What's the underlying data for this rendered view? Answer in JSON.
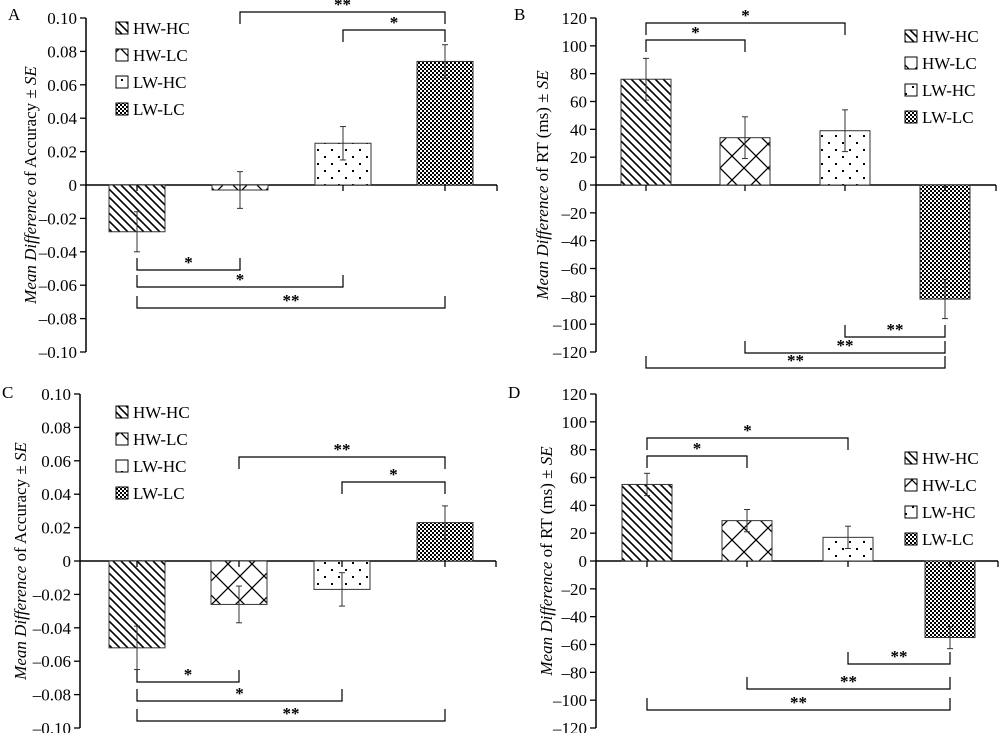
{
  "chart_data": [
    {
      "type": "bar",
      "panel_label": "A",
      "ylabel_italic": "Mean Difference",
      "ylabel_rest": " of Accuracy ± ",
      "ylabel_se": "SE",
      "ylim": [
        -0.1,
        0.1
      ],
      "yticks": [
        0.1,
        0.08,
        0.06,
        0.04,
        0.02,
        0,
        -0.02,
        -0.04,
        -0.06,
        -0.08,
        -0.1
      ],
      "ytick_labels": [
        "0.10",
        "0.08",
        "0.06",
        "0.04",
        "0.02",
        "0",
        "–0.02",
        "–0.04",
        "–0.06",
        "–0.08",
        "–0.10"
      ],
      "legend_position": "top-left",
      "categories": [
        "HW-HC",
        "HW-LC",
        "LW-HC",
        "LW-LC"
      ],
      "values": [
        -0.028,
        -0.003,
        0.025,
        0.074
      ],
      "se": [
        0.012,
        0.011,
        0.01,
        0.01
      ],
      "significance": [
        {
          "from": 1,
          "to": 3,
          "label": "**",
          "side": "above"
        },
        {
          "from": 2,
          "to": 3,
          "label": "*",
          "side": "above"
        },
        {
          "from": 0,
          "to": 1,
          "label": "*",
          "side": "below"
        },
        {
          "from": 0,
          "to": 2,
          "label": "*",
          "side": "below"
        },
        {
          "from": 0,
          "to": 3,
          "label": "**",
          "side": "below"
        }
      ]
    },
    {
      "type": "bar",
      "panel_label": "B",
      "ylabel_italic": "Mean Difference",
      "ylabel_rest": " of RT (ms) ± ",
      "ylabel_se": "SE",
      "ylim": [
        -120,
        120
      ],
      "yticks": [
        120,
        100,
        80,
        60,
        40,
        20,
        0,
        -20,
        -40,
        -60,
        -80,
        -100,
        -120
      ],
      "ytick_labels": [
        "120",
        "100",
        "80",
        "60",
        "40",
        "20",
        "0",
        "–20",
        "–40",
        "–60",
        "–80",
        "–100",
        "–120"
      ],
      "legend_position": "top-right",
      "categories": [
        "HW-HC",
        "HW-LC",
        "LW-HC",
        "LW-LC"
      ],
      "values": [
        76,
        34,
        39,
        -82
      ],
      "se": [
        15,
        15,
        15,
        14
      ],
      "significance": [
        {
          "from": 0,
          "to": 2,
          "label": "*",
          "side": "above"
        },
        {
          "from": 0,
          "to": 1,
          "label": "*",
          "side": "above"
        },
        {
          "from": 2,
          "to": 3,
          "label": "**",
          "side": "below"
        },
        {
          "from": 1,
          "to": 3,
          "label": "**",
          "side": "below"
        },
        {
          "from": 0,
          "to": 3,
          "label": "**",
          "side": "below"
        }
      ]
    },
    {
      "type": "bar",
      "panel_label": "C",
      "ylabel_italic": "Mean Difference",
      "ylabel_rest": " of Accuracy ± ",
      "ylabel_se": "SE",
      "ylim": [
        -0.1,
        0.1
      ],
      "yticks": [
        0.1,
        0.08,
        0.06,
        0.04,
        0.02,
        0,
        -0.02,
        -0.04,
        -0.06,
        -0.08,
        -0.1
      ],
      "ytick_labels": [
        "0.10",
        "0.08",
        "0.06",
        "0.04",
        "0.02",
        "0",
        "–0.02",
        "–0.04",
        "–0.06",
        "–0.08",
        "–0.10"
      ],
      "legend_position": "top-left",
      "categories": [
        "HW-HC",
        "HW-LC",
        "LW-HC",
        "LW-LC"
      ],
      "values": [
        -0.052,
        -0.026,
        -0.017,
        0.023
      ],
      "se": [
        0.013,
        0.011,
        0.01,
        0.01
      ],
      "significance": [
        {
          "from": 1,
          "to": 3,
          "label": "**",
          "side": "above"
        },
        {
          "from": 2,
          "to": 3,
          "label": "*",
          "side": "above"
        },
        {
          "from": 0,
          "to": 1,
          "label": "*",
          "side": "below"
        },
        {
          "from": 0,
          "to": 2,
          "label": "*",
          "side": "below"
        },
        {
          "from": 0,
          "to": 3,
          "label": "**",
          "side": "below"
        }
      ]
    },
    {
      "type": "bar",
      "panel_label": "D",
      "ylabel_italic": "Mean Difference",
      "ylabel_rest": " of RT (ms) ± ",
      "ylabel_se": "SE",
      "ylim": [
        -120,
        120
      ],
      "yticks": [
        120,
        100,
        80,
        60,
        40,
        20,
        0,
        -20,
        -40,
        -60,
        -80,
        -100,
        -120
      ],
      "ytick_labels": [
        "120",
        "100",
        "80",
        "60",
        "40",
        "20",
        "0",
        "–20",
        "–40",
        "–60",
        "–80",
        "–100",
        "–120"
      ],
      "legend_position": "right",
      "categories": [
        "HW-HC",
        "HW-LC",
        "LW-HC",
        "LW-LC"
      ],
      "values": [
        55,
        29,
        17,
        -55
      ],
      "se": [
        8,
        8,
        8,
        8
      ],
      "significance": [
        {
          "from": 0,
          "to": 2,
          "label": "*",
          "side": "above"
        },
        {
          "from": 0,
          "to": 1,
          "label": "*",
          "side": "above"
        },
        {
          "from": 2,
          "to": 3,
          "label": "**",
          "side": "below"
        },
        {
          "from": 1,
          "to": 3,
          "label": "**",
          "side": "below"
        },
        {
          "from": 0,
          "to": 3,
          "label": "**",
          "side": "below"
        }
      ]
    }
  ],
  "patterns": [
    "diagonal-stripes",
    "diamond-lattice",
    "sparse-dots",
    "dense-checker"
  ],
  "colors": {
    "ink": "#000000",
    "fill": "#ffffff"
  }
}
